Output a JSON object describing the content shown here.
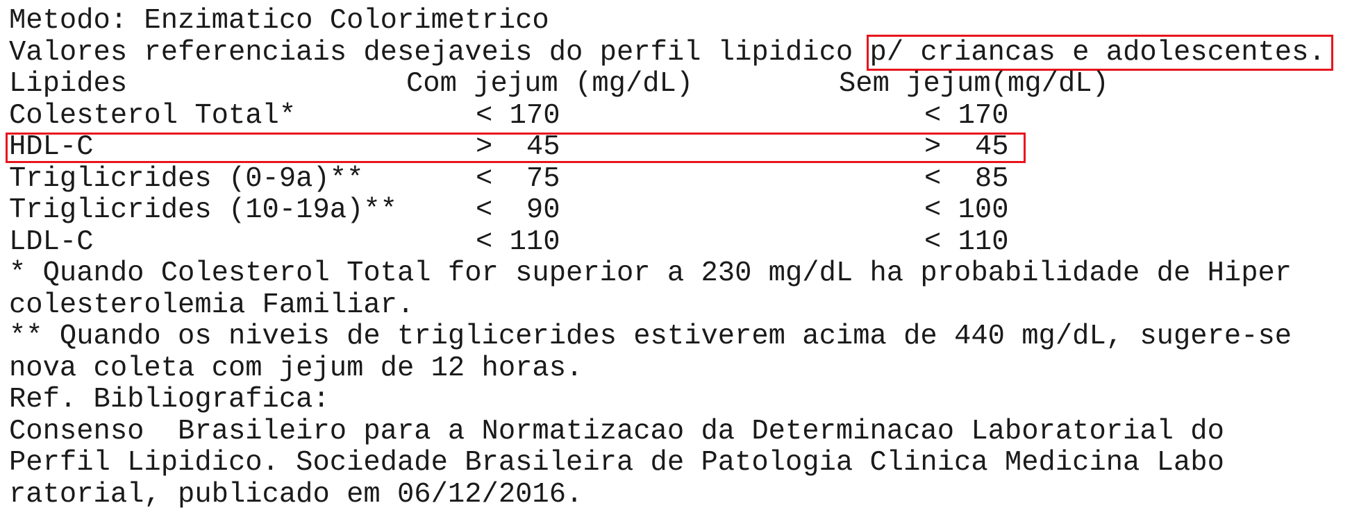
{
  "method_line": "Metodo: Enzimatico Colorimetrico",
  "reference_line": {
    "prefix": "Valores referenciais desejaveis do perfil lipidico ",
    "highlighted": "p/ criancas e adolescentes."
  },
  "table": {
    "headers": [
      "Lipides",
      "Com jejum (mg/dL)",
      "Sem jejum(mg/dL)"
    ],
    "rows": [
      {
        "name": "Colesterol Total*",
        "fasting": "< 170",
        "non_fasting": "< 170",
        "highlighted": false
      },
      {
        "name": "HDL-C",
        "fasting": ">  45",
        "non_fasting": ">  45",
        "highlighted": true
      },
      {
        "name": "Triglicrides (0-9a)**",
        "fasting": "<  75",
        "non_fasting": "<  85",
        "highlighted": false
      },
      {
        "name": "Triglicrides (10-19a)**",
        "fasting": "<  90",
        "non_fasting": "< 100",
        "highlighted": false
      },
      {
        "name": "LDL-C",
        "fasting": "< 110",
        "non_fasting": "< 110",
        "highlighted": false
      }
    ]
  },
  "notes": [
    "* Quando Colesterol Total for superior a 230 mg/dL ha probabilidade de Hiper",
    "colesterolemia Familiar.",
    "** Quando os niveis de triglicerides estiverem acima de 440 mg/dL, sugere-se",
    "nova coleta com jejum de 12 horas."
  ],
  "bibliography": {
    "label": "Ref. Bibliografica:",
    "lines": [
      "Consenso  Brasileiro para a Normatizacao da Determinacao Laboratorial do",
      "Perfil Lipidico. Sociedade Brasileira de Patologia Clinica Medicina Labo",
      "ratorial, publicado em 06/12/2016."
    ]
  },
  "highlight_color": "#e8141c"
}
